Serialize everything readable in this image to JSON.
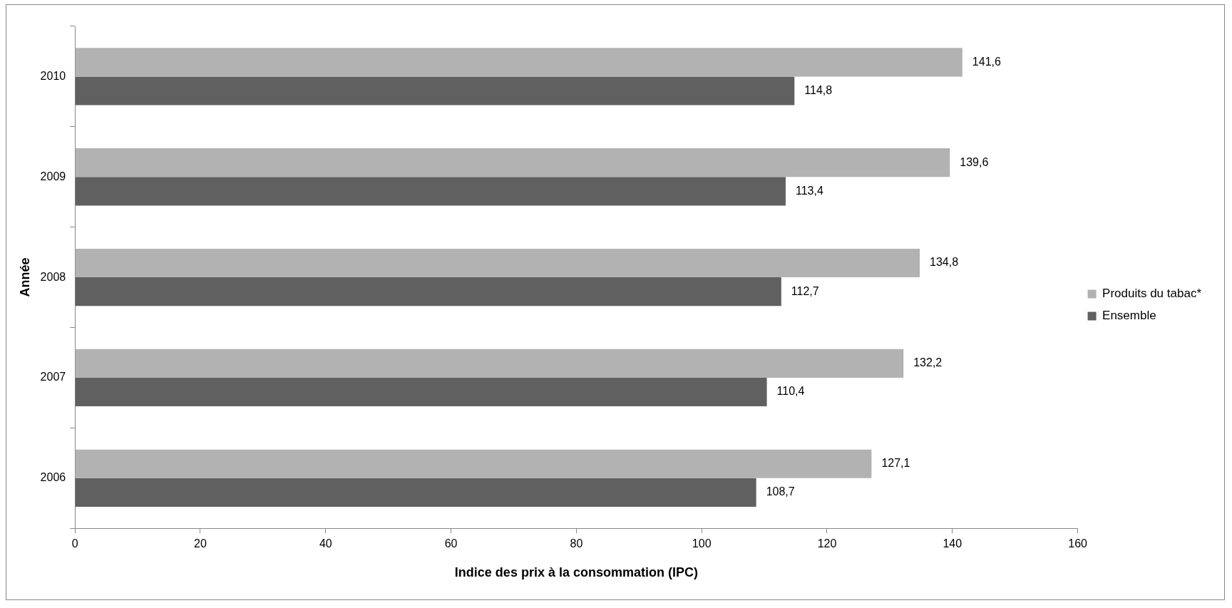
{
  "chart_data": {
    "type": "bar",
    "orientation": "horizontal",
    "xlabel": "Indice des prix à la consommation (IPC)",
    "ylabel": "Année",
    "categories": [
      "2010",
      "2009",
      "2008",
      "2007",
      "2006"
    ],
    "series": [
      {
        "name": "Produits du tabac*",
        "color": "#b2b2b2",
        "values": [
          141.6,
          139.6,
          134.8,
          132.2,
          127.1
        ],
        "value_labels": [
          "141,6",
          "139,6",
          "134,8",
          "132,2",
          "127,1"
        ]
      },
      {
        "name": "Ensemble",
        "color": "#606060",
        "values": [
          114.8,
          113.4,
          112.7,
          110.4,
          108.7
        ],
        "value_labels": [
          "114,8",
          "113,4",
          "112,7",
          "110,4",
          "108,7"
        ]
      }
    ],
    "xlim": [
      0,
      160
    ],
    "xticks": [
      0,
      20,
      40,
      60,
      80,
      100,
      120,
      140,
      160
    ],
    "grid": false,
    "legend": "right"
  }
}
